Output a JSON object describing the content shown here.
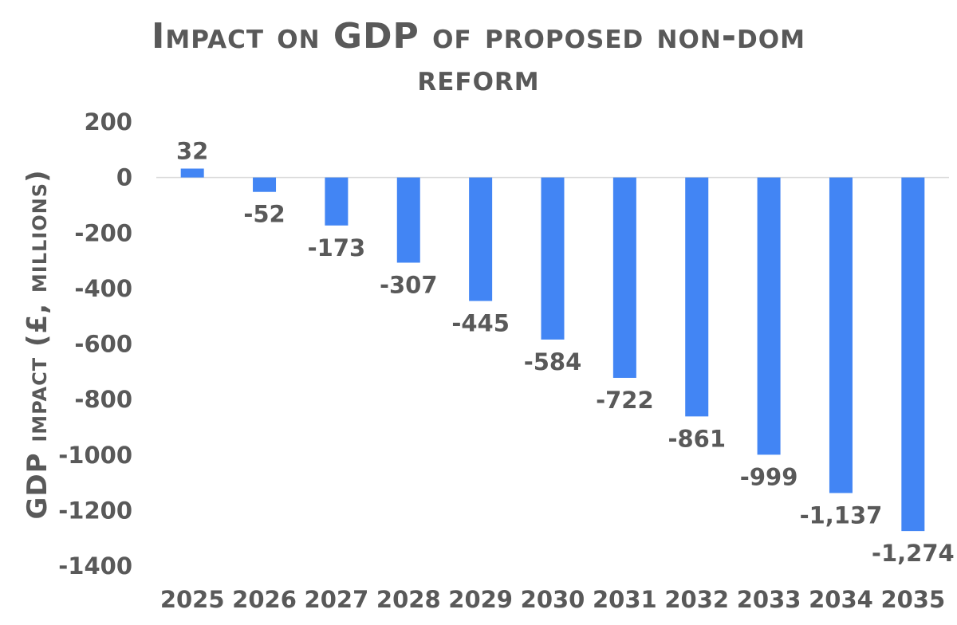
{
  "chart_data": {
    "type": "bar",
    "title_lines": [
      "Impact on GDP of proposed non-dom",
      "reform"
    ],
    "xlabel": "",
    "ylabel": "GDP impact (£, millions)",
    "categories": [
      "2025",
      "2026",
      "2027",
      "2028",
      "2029",
      "2030",
      "2031",
      "2032",
      "2033",
      "2034",
      "2035"
    ],
    "values": [
      32,
      -52,
      -173,
      -307,
      -445,
      -584,
      -722,
      -861,
      -999,
      -1137,
      -1274
    ],
    "data_labels": [
      "32",
      "-52",
      "-173",
      "-307",
      "-445",
      "-584",
      "-722",
      "-861",
      "-999",
      "-1,137",
      "-1,274"
    ],
    "ylim": [
      -1400,
      200
    ],
    "yticks": [
      200,
      0,
      -200,
      -400,
      -600,
      -800,
      -1000,
      -1200,
      -1400
    ],
    "ytick_labels": [
      "200",
      "0",
      "-200",
      "-400",
      "-600",
      "-800",
      "-1000",
      "-1200",
      "-1400"
    ],
    "grid": false,
    "legend": "none",
    "bar_color": "#4285F4"
  }
}
